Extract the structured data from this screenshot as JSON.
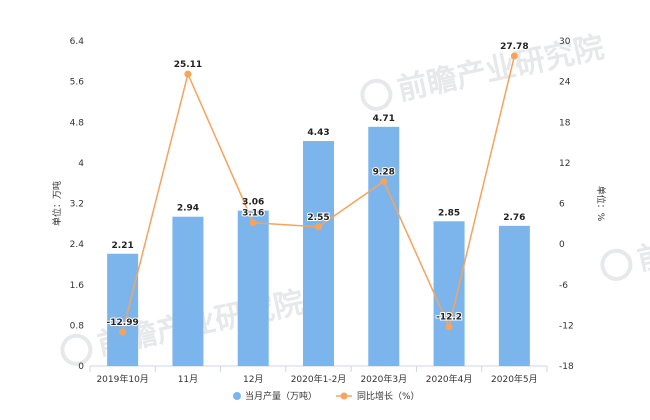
{
  "chart_data": {
    "type": "bar",
    "categories": [
      "2019年10月",
      "11月",
      "12月",
      "2020年1-2月",
      "2020年3月",
      "2020年4月",
      "2020年5月"
    ],
    "series": [
      {
        "name": "当月产量（万吨）",
        "type": "bar",
        "axis": "left",
        "color": "#7cb5ec",
        "values": [
          2.21,
          2.94,
          3.06,
          4.43,
          4.71,
          2.85,
          2.76
        ],
        "labels": [
          "2.21",
          "2.94",
          "3.06",
          "4.43",
          "4.71",
          "2.85",
          "2.76"
        ]
      },
      {
        "name": "同比增长（%）",
        "type": "line",
        "axis": "right",
        "color": "#f7a35c",
        "values": [
          -12.99,
          25.11,
          3.16,
          2.55,
          9.28,
          -12.2,
          27.78
        ],
        "labels": [
          "-12.99",
          "25.11",
          "3.16",
          "2.55",
          "9.28",
          "-12.2",
          "27.78"
        ]
      }
    ],
    "y_left": {
      "label": "单位：万吨",
      "range": [
        0,
        6.4
      ],
      "ticks": [
        "0",
        "0.8",
        "1.6",
        "2.4",
        "3.2",
        "4",
        "4.8",
        "5.6",
        "6.4"
      ]
    },
    "y_right": {
      "label": "单位：%",
      "range": [
        -18,
        30
      ],
      "ticks": [
        "-18",
        "-12",
        "-6",
        "0",
        "6",
        "12",
        "18",
        "24",
        "30"
      ]
    },
    "grid": false,
    "legend_position": "bottom-center"
  },
  "watermark": {
    "text": "前瞻产业研究院",
    "color": "#c8cdd2"
  }
}
